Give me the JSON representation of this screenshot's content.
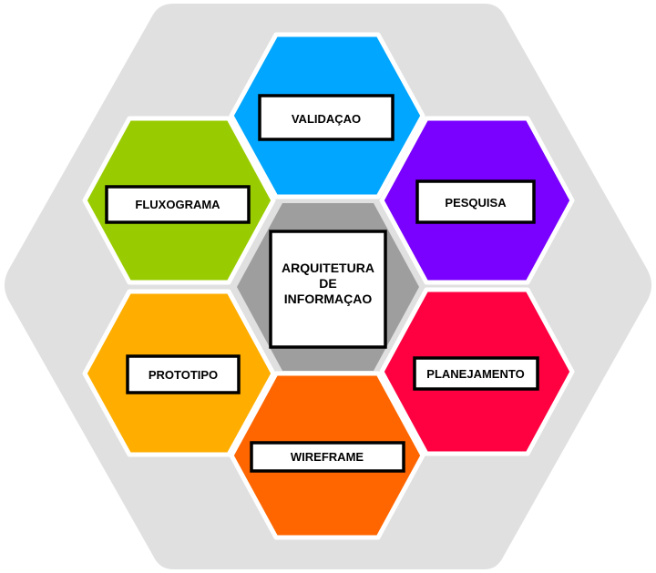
{
  "colors": {
    "background_hex": "#e0e0e0",
    "center_hex": "#9e9e9e",
    "hex_border": "#ffffff",
    "label_border": "#000000",
    "label_fill": "#ffffff"
  },
  "center": {
    "lines": [
      "ARQUITETURA",
      "DE",
      "INFORMAÇAO"
    ]
  },
  "nodes": [
    {
      "key": "validacao",
      "label": "VALIDAÇAO",
      "color": "#00a6ff"
    },
    {
      "key": "pesquisa",
      "label": "PESQUISA",
      "color": "#7a00ff"
    },
    {
      "key": "planejamento",
      "label": "PLANEJAMENTO",
      "color": "#ff0040"
    },
    {
      "key": "wireframe",
      "label": "WIREFRAME",
      "color": "#ff6600"
    },
    {
      "key": "prototipo",
      "label": "PROTOTIPO",
      "color": "#ffae00"
    },
    {
      "key": "fluxograma",
      "label": "FLUXOGRAMA",
      "color": "#99cc00"
    }
  ]
}
